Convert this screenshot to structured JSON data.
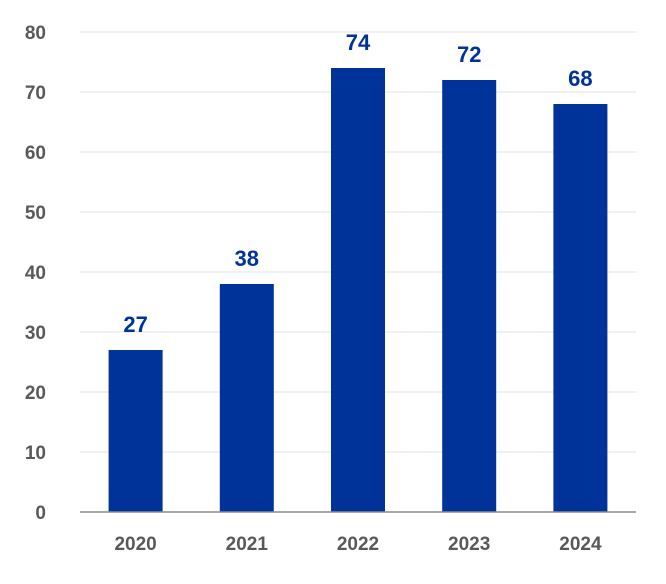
{
  "chart_data": {
    "type": "bar",
    "title": "",
    "xlabel": "",
    "ylabel": "",
    "categories": [
      "2020",
      "2021",
      "2022",
      "2023",
      "2024"
    ],
    "values": [
      27,
      38,
      74,
      72,
      68
    ],
    "data_labels": [
      "27",
      "38",
      "74",
      "72",
      "68"
    ],
    "ylim": [
      0,
      80
    ],
    "yticks": [
      0,
      10,
      20,
      30,
      40,
      50,
      60,
      70,
      80
    ],
    "ytick_labels": [
      "0",
      "10",
      "20",
      "30",
      "40",
      "50",
      "60",
      "70",
      "80"
    ],
    "grid": true,
    "legend": "none",
    "colors": {
      "bar": "#003399",
      "data_label": "#003399",
      "tick_label": "#595959",
      "grid": "#e3e3e3",
      "axis": "#8c8c8c"
    }
  }
}
